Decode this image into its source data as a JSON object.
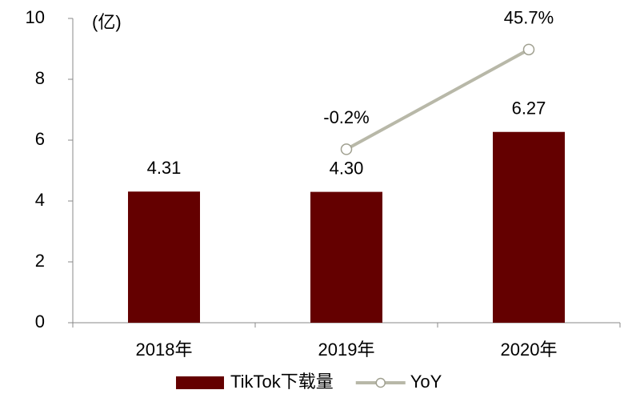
{
  "chart_data": {
    "type": "bar",
    "unit_label": "(亿)",
    "categories": [
      "2018年",
      "2019年",
      "2020年"
    ],
    "series": [
      {
        "name": "TikTok下载量",
        "type": "bar",
        "color": "#640000",
        "values": [
          4.31,
          4.3,
          6.27
        ],
        "value_labels": [
          "4.31",
          "4.30",
          "6.27"
        ]
      },
      {
        "name": "YoY",
        "type": "line",
        "axis": "y2",
        "color": "#b8b8a8",
        "values": [
          null,
          -0.2,
          45.7
        ],
        "value_labels": [
          null,
          "-0.2%",
          "45.7%"
        ]
      }
    ],
    "ylim": [
      0,
      10
    ],
    "yticks": [
      0,
      2,
      4,
      6,
      8,
      10
    ],
    "y2lim": [
      -80,
      60
    ],
    "legend": "bottom"
  }
}
